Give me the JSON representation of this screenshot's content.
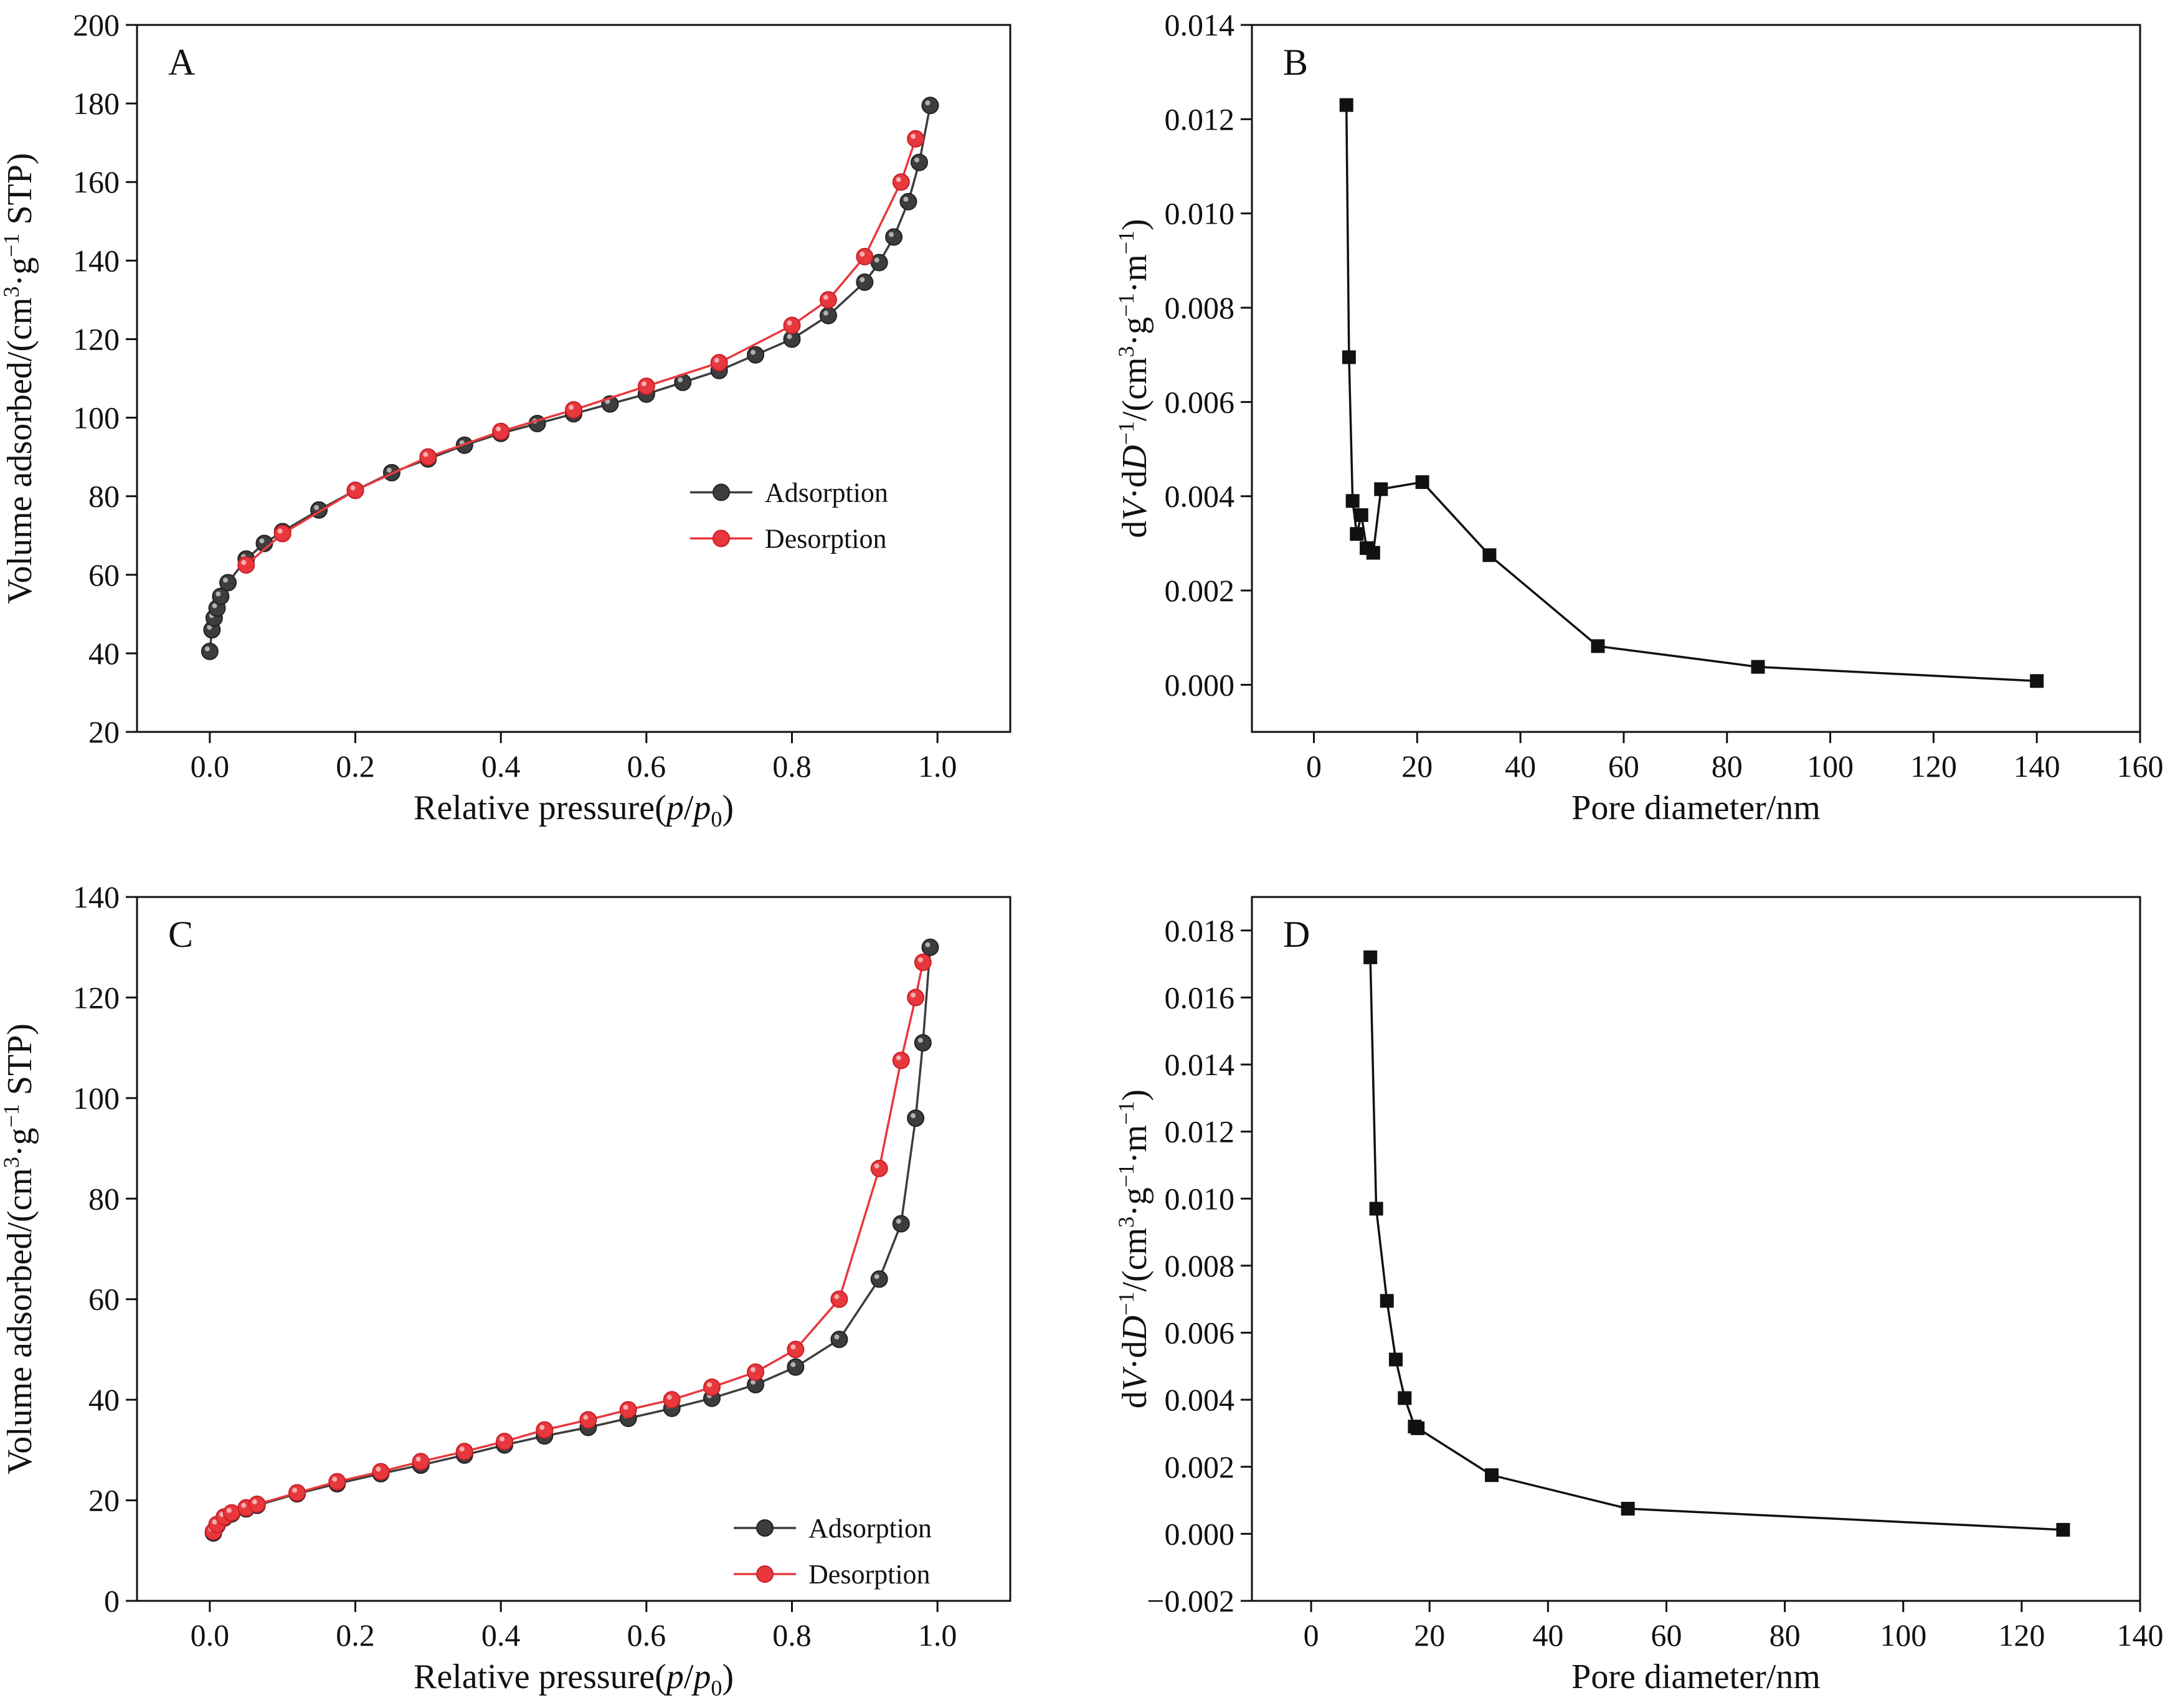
{
  "chart_data": [
    {
      "panel": "A",
      "type": "line",
      "xlabel": "Relative pressure(p/p0)",
      "xlabel_parts": [
        "Relative pressure(",
        "p",
        "/",
        "p",
        "0",
        ")"
      ],
      "ylabel": "Volume adsorbed/(cm3·g−1 STP)",
      "ylabel_parts": [
        "Volume adsorbed/(cm",
        "3",
        "·g",
        "−1",
        " STP)"
      ],
      "xlim": [
        -0.1,
        1.1
      ],
      "ylim": [
        20,
        200
      ],
      "xticks": [
        0.0,
        0.2,
        0.4,
        0.6,
        0.8,
        1.0
      ],
      "xtick_labels": [
        "0.0",
        "0.2",
        "0.4",
        "0.6",
        "0.8",
        "1.0"
      ],
      "yticks": [
        20,
        40,
        60,
        80,
        100,
        120,
        140,
        160,
        180,
        200
      ],
      "ytick_labels": [
        "20",
        "40",
        "60",
        "80",
        "100",
        "120",
        "140",
        "160",
        "180",
        "200"
      ],
      "grid": false,
      "legend": "center-right",
      "series": [
        {
          "name": "Adsorption",
          "color": "#3d3d3d",
          "marker": "circle",
          "x": [
            0.0,
            0.003,
            0.006,
            0.01,
            0.015,
            0.025,
            0.05,
            0.075,
            0.1,
            0.15,
            0.2,
            0.25,
            0.3,
            0.35,
            0.4,
            0.45,
            0.5,
            0.55,
            0.6,
            0.65,
            0.7,
            0.75,
            0.8,
            0.85,
            0.9,
            0.92,
            0.94,
            0.96,
            0.975,
            0.99
          ],
          "y": [
            40.5,
            46,
            49,
            51.5,
            54.5,
            58,
            64,
            68,
            71,
            76.5,
            81.5,
            86,
            89.5,
            93,
            96,
            98.5,
            101,
            103.5,
            106,
            109,
            112,
            116,
            120,
            126,
            134.5,
            139.5,
            146,
            155,
            165,
            179.5
          ]
        },
        {
          "name": "Desorption",
          "color": "#e8383d",
          "marker": "circle",
          "x": [
            0.05,
            0.1,
            0.2,
            0.3,
            0.4,
            0.5,
            0.6,
            0.7,
            0.8,
            0.85,
            0.9,
            0.95,
            0.97
          ],
          "y": [
            62.5,
            70.5,
            81.5,
            90,
            96.5,
            102,
            108,
            114,
            123.5,
            130,
            141,
            160,
            171
          ]
        }
      ]
    },
    {
      "panel": "B",
      "type": "line",
      "xlabel": "Pore diameter/nm",
      "ylabel": "dV·dD−1/(cm3·g−1·m−1)",
      "ylabel_parts": [
        "d",
        "V",
        "·d",
        "D",
        "−1",
        "/(cm",
        "3",
        "·g",
        "−1",
        "·m",
        "−1",
        ")"
      ],
      "xlim": [
        -12,
        160
      ],
      "ylim": [
        -0.001,
        0.014
      ],
      "xticks": [
        0,
        20,
        40,
        60,
        80,
        100,
        120,
        140,
        160
      ],
      "xtick_labels": [
        "0",
        "20",
        "40",
        "60",
        "80",
        "100",
        "120",
        "140",
        "160"
      ],
      "yticks": [
        0.0,
        0.002,
        0.004,
        0.006,
        0.008,
        0.01,
        0.012,
        0.014
      ],
      "ytick_labels": [
        "0.000",
        "0.002",
        "0.004",
        "0.006",
        "0.008",
        "0.010",
        "0.012",
        "0.014"
      ],
      "grid": false,
      "series": [
        {
          "color": "#111111",
          "marker": "square",
          "x": [
            6.3,
            6.8,
            7.5,
            8.3,
            9.2,
            10.2,
            11.5,
            13.0,
            21.0,
            34.0,
            55.0,
            86.0,
            140.0
          ],
          "y": [
            0.0123,
            0.00695,
            0.0039,
            0.0032,
            0.0036,
            0.0029,
            0.0028,
            0.00415,
            0.0043,
            0.00275,
            0.00082,
            0.00038,
            8e-05
          ]
        }
      ]
    },
    {
      "panel": "C",
      "type": "line",
      "xlabel": "Relative pressure(p/p0)",
      "xlabel_parts": [
        "Relative pressure(",
        "p",
        "/",
        "p",
        "0",
        ")"
      ],
      "ylabel": "Volume adsorbed/(cm3·g−1 STP)",
      "ylabel_parts": [
        "Volume adsorbed/(cm",
        "3",
        "·g",
        "−1",
        " STP)"
      ],
      "xlim": [
        -0.1,
        1.1
      ],
      "ylim": [
        0,
        140
      ],
      "xticks": [
        0.0,
        0.2,
        0.4,
        0.6,
        0.8,
        1.0
      ],
      "xtick_labels": [
        "0.0",
        "0.2",
        "0.4",
        "0.6",
        "0.8",
        "1.0"
      ],
      "yticks": [
        0,
        20,
        40,
        60,
        80,
        100,
        120,
        140
      ],
      "ytick_labels": [
        "0",
        "20",
        "40",
        "60",
        "80",
        "100",
        "120",
        "140"
      ],
      "grid": false,
      "legend": "lower-right",
      "series": [
        {
          "name": "Adsorption",
          "color": "#3d3d3d",
          "marker": "circle",
          "x": [
            0.005,
            0.01,
            0.02,
            0.03,
            0.05,
            0.065,
            0.12,
            0.175,
            0.235,
            0.29,
            0.35,
            0.405,
            0.46,
            0.52,
            0.575,
            0.635,
            0.69,
            0.75,
            0.805,
            0.865,
            0.92,
            0.95,
            0.97,
            0.98,
            0.99
          ],
          "y": [
            13.5,
            15,
            16.5,
            17.3,
            18.3,
            19,
            21.3,
            23.3,
            25.3,
            27,
            29,
            31,
            32.8,
            34.5,
            36.3,
            38.3,
            40.3,
            43,
            46.5,
            52,
            64,
            75,
            96,
            111,
            130
          ]
        },
        {
          "name": "Desorption",
          "color": "#e8383d",
          "marker": "circle",
          "x": [
            0.005,
            0.01,
            0.02,
            0.03,
            0.05,
            0.065,
            0.12,
            0.175,
            0.235,
            0.29,
            0.35,
            0.405,
            0.46,
            0.52,
            0.575,
            0.635,
            0.69,
            0.75,
            0.805,
            0.865,
            0.92,
            0.95,
            0.97,
            0.98
          ],
          "y": [
            13.8,
            15.2,
            16.7,
            17.5,
            18.5,
            19.2,
            21.5,
            23.7,
            25.7,
            27.7,
            29.7,
            31.7,
            34,
            36,
            38,
            40,
            42.5,
            45.5,
            50,
            60,
            86,
            107.5,
            120,
            127
          ]
        }
      ]
    },
    {
      "panel": "D",
      "type": "line",
      "xlabel": "Pore diameter/nm",
      "ylabel": "dV·dD−1/(cm3·g−1·m−1)",
      "ylabel_parts": [
        "d",
        "V",
        "·d",
        "D",
        "−1",
        "/(cm",
        "3",
        "·g",
        "−1",
        "·m",
        "−1",
        ")"
      ],
      "xlim": [
        -10,
        140
      ],
      "ylim": [
        -0.002,
        0.019
      ],
      "xticks": [
        0,
        20,
        40,
        60,
        80,
        100,
        120,
        140
      ],
      "xtick_labels": [
        "0",
        "20",
        "40",
        "60",
        "80",
        "100",
        "120",
        "140"
      ],
      "yticks": [
        -0.002,
        0.0,
        0.002,
        0.004,
        0.006,
        0.008,
        0.01,
        0.012,
        0.014,
        0.016,
        0.018
      ],
      "ytick_labels": [
        "−0.002",
        "0.000",
        "0.002",
        "0.004",
        "0.006",
        "0.008",
        "0.010",
        "0.012",
        "0.014",
        "0.016",
        "0.018"
      ],
      "grid": false,
      "series": [
        {
          "color": "#111111",
          "marker": "square",
          "x": [
            10.0,
            11.0,
            12.8,
            14.3,
            15.8,
            17.5,
            18.0,
            30.5,
            53.5,
            127.0
          ],
          "y": [
            0.0172,
            0.0097,
            0.00695,
            0.0052,
            0.00405,
            0.0032,
            0.00315,
            0.00175,
            0.00075,
            0.00012
          ]
        }
      ]
    }
  ]
}
